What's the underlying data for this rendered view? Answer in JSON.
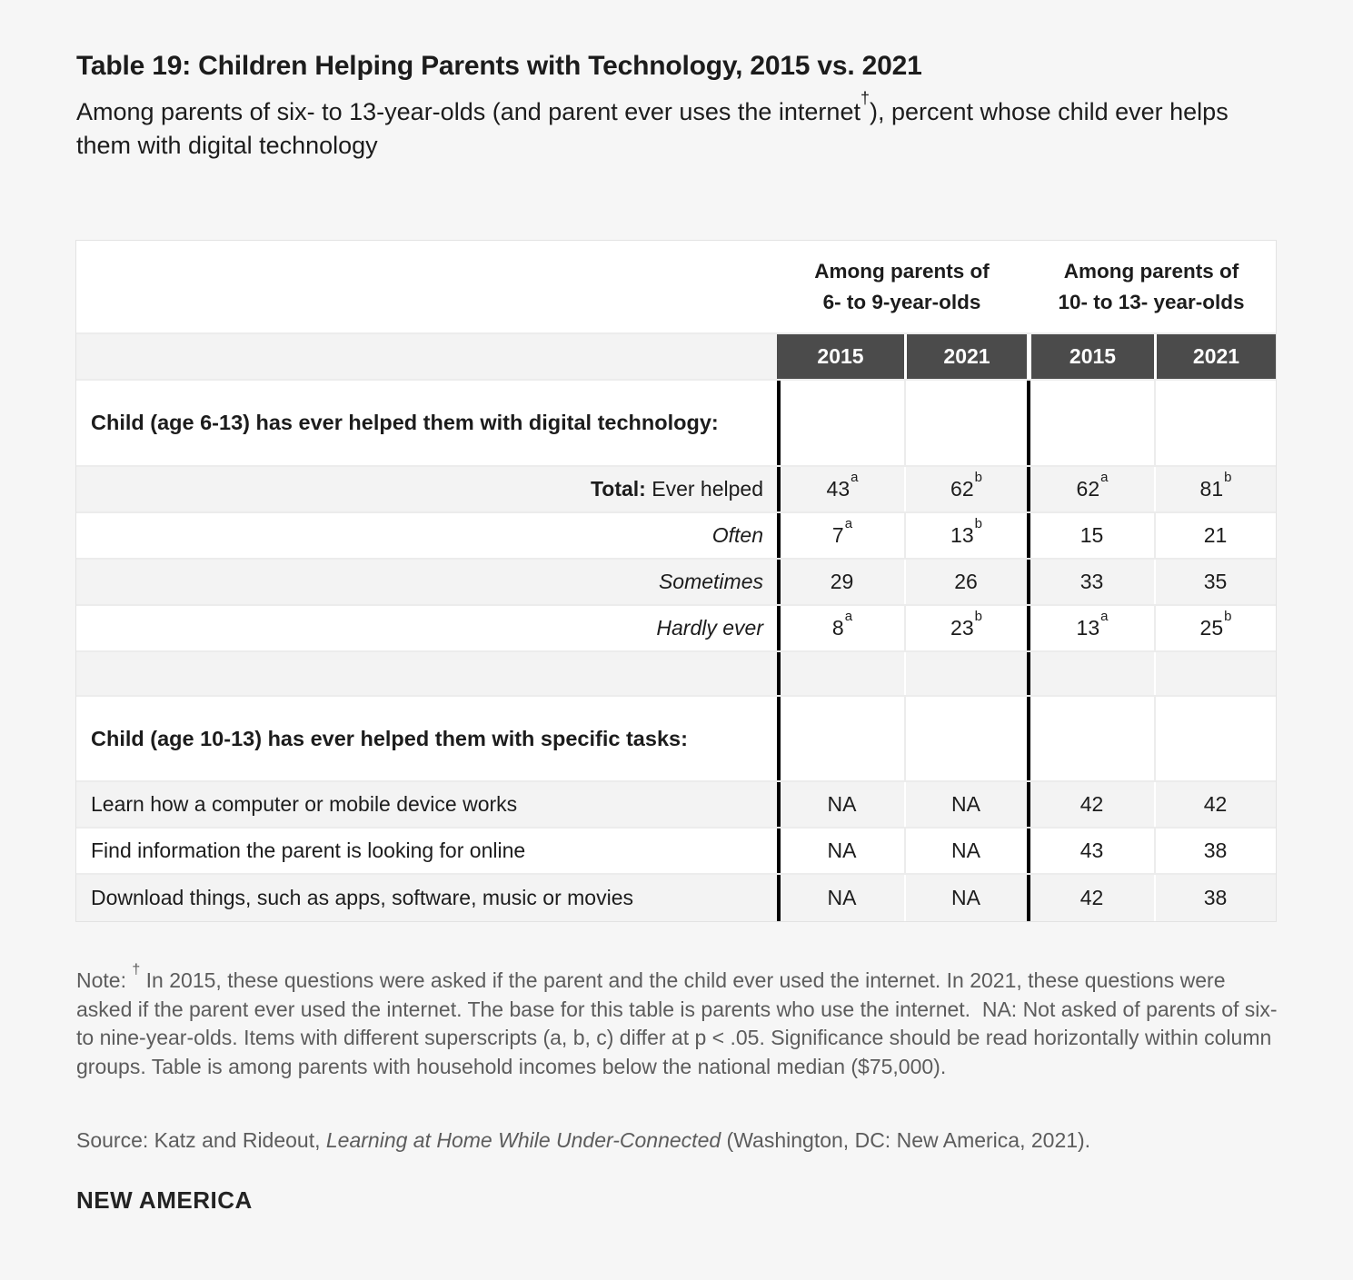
{
  "title": "Table 19: Children Helping Parents with Technology, 2015 vs. 2021",
  "subtitle": {
    "before": "Among parents of six- to 13-year-olds (and parent ever uses the internet",
    "dagger": "†",
    "after": "), percent whose child ever helps them with digital technology"
  },
  "table": {
    "groups": [
      {
        "line1": "Among parents of",
        "line2": "6- to 9-year-olds"
      },
      {
        "line1": "Among parents of",
        "line2": "10- to 13- year-olds"
      }
    ],
    "years": [
      "2015",
      "2021",
      "2015",
      "2021"
    ],
    "section1": {
      "header": "Child (age 6-13) has ever helped them with digital technology:",
      "rows": [
        {
          "label_bold": "Total:",
          "label": " Ever helped",
          "values": [
            {
              "v": "43",
              "sup": "a"
            },
            {
              "v": "62",
              "sup": "b"
            },
            {
              "v": "62",
              "sup": "a"
            },
            {
              "v": "81",
              "sup": "b"
            }
          ]
        },
        {
          "label": "Often",
          "values": [
            {
              "v": "7",
              "sup": "a"
            },
            {
              "v": "13",
              "sup": "b"
            },
            {
              "v": "15",
              "sup": ""
            },
            {
              "v": "21",
              "sup": ""
            }
          ]
        },
        {
          "label": "Sometimes",
          "values": [
            {
              "v": "29",
              "sup": ""
            },
            {
              "v": "26",
              "sup": ""
            },
            {
              "v": "33",
              "sup": ""
            },
            {
              "v": "35",
              "sup": ""
            }
          ]
        },
        {
          "label": "Hardly ever",
          "values": [
            {
              "v": "8",
              "sup": "a"
            },
            {
              "v": "23",
              "sup": "b"
            },
            {
              "v": "13",
              "sup": "a"
            },
            {
              "v": "25",
              "sup": "b"
            }
          ]
        }
      ]
    },
    "section2": {
      "header": "Child (age 10-13) has ever helped them with specific tasks:",
      "rows": [
        {
          "label": "Learn how a computer or mobile device works",
          "values": [
            {
              "v": "NA",
              "sup": ""
            },
            {
              "v": "NA",
              "sup": ""
            },
            {
              "v": "42",
              "sup": ""
            },
            {
              "v": "42",
              "sup": ""
            }
          ]
        },
        {
          "label": "Find information the parent is looking for online",
          "values": [
            {
              "v": "NA",
              "sup": ""
            },
            {
              "v": "NA",
              "sup": ""
            },
            {
              "v": "43",
              "sup": ""
            },
            {
              "v": "38",
              "sup": ""
            }
          ]
        },
        {
          "label": "Download things, such as apps, software, music or movies",
          "values": [
            {
              "v": "NA",
              "sup": ""
            },
            {
              "v": "NA",
              "sup": ""
            },
            {
              "v": "42",
              "sup": ""
            },
            {
              "v": "38",
              "sup": ""
            }
          ]
        }
      ]
    }
  },
  "note": {
    "prefix": "Note: ",
    "dagger": "†",
    "body": " In 2015, these questions were asked if the parent and the child ever used the internet. In 2021, these questions were asked if the parent ever used the internet. The base for this table is parents who use the internet.  NA: Not asked of parents of six- to nine-year-olds. Items with different superscripts (a, b, c) differ at p < .05. Significance should be read horizontally within column groups. Table is among parents with household incomes below the national median ($75,000)."
  },
  "source": {
    "prefix": "Source: Katz and Rideout, ",
    "title_italic": "Learning at Home While Under-Connected",
    "suffix": " (Washington, DC: New America, 2021)."
  },
  "footer": {
    "logo": "NEW AMERICA"
  },
  "colors": {
    "page_bg": "#f6f6f6",
    "row_alt": "#f3f3f3",
    "year_header_bg": "#4b4b4b",
    "group_divider": "#000000",
    "note_text": "#5c5c5c"
  }
}
